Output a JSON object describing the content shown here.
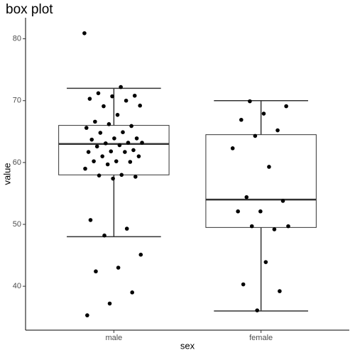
{
  "chart_data": {
    "type": "box",
    "title": "box plot",
    "x_label": "sex",
    "y_label": "value",
    "categories": [
      "male",
      "female"
    ],
    "boxes": [
      {
        "whisker_low": 48,
        "q1": 58,
        "median": 63,
        "q3": 66,
        "whisker_high": 72
      },
      {
        "whisker_low": 36,
        "q1": 49.5,
        "median": 54,
        "q3": 64.5,
        "whisker_high": 70
      }
    ],
    "points": [
      [
        80.9,
        72.2,
        71.2,
        70.8,
        70.7,
        70.3,
        70.0,
        69.1,
        69.2,
        67.7,
        66.6,
        65.9,
        66.2,
        65.6,
        64.9,
        64.8,
        63.9,
        63.9,
        63.7,
        63.2,
        63.1,
        63.2,
        62.8,
        62.6,
        62.0,
        61.8,
        61.7,
        61.7,
        61.0,
        61.0,
        60.2,
        60.2,
        60.1,
        59.7,
        59.0,
        58.0,
        57.9,
        57.7,
        57.4,
        50.7,
        49.3,
        48.2,
        45.1,
        43.0,
        42.4,
        39.0,
        37.2,
        35.3
      ],
      [
        69.9,
        69.1,
        67.9,
        66.9,
        65.2,
        64.3,
        62.3,
        59.3,
        54.4,
        53.8,
        52.1,
        52.1,
        49.2,
        49.7,
        49.7,
        43.9,
        40.3,
        39.2,
        36.1
      ]
    ],
    "box_color": "#333333",
    "point_color": "#000000",
    "ylim": [
      32.9,
      83.4
    ],
    "yticks": [
      40,
      50,
      60,
      70,
      80
    ]
  }
}
